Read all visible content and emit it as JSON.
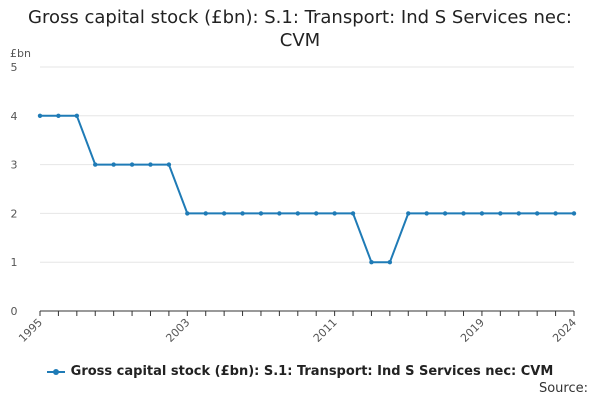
{
  "chart_data": {
    "type": "line",
    "title_lines": [
      "Gross capital stock (£bn): S.1: Transport: Ind S Services nec:",
      "CVM"
    ],
    "ylabel": "£bn",
    "ylim": [
      0,
      5
    ],
    "yticks": [
      0,
      1,
      2,
      3,
      4,
      5
    ],
    "xlim": [
      1995,
      2024
    ],
    "xtick_labels": [
      "1995",
      "2003",
      "2011",
      "2019",
      "2024"
    ],
    "grid": true,
    "legend": "bottom",
    "series": [
      {
        "name": "Gross capital stock (£bn): S.1: Transport: Ind S Services nec: CVM",
        "color": "#1f7bb6",
        "x": [
          1995,
          1996,
          1997,
          1998,
          1999,
          2000,
          2001,
          2002,
          2003,
          2004,
          2005,
          2006,
          2007,
          2008,
          2009,
          2010,
          2011,
          2012,
          2013,
          2014,
          2015,
          2016,
          2017,
          2018,
          2019,
          2020,
          2021,
          2022,
          2023,
          2024
        ],
        "values": [
          4,
          4,
          4,
          3,
          3,
          3,
          3,
          3,
          2,
          2,
          2,
          2,
          2,
          2,
          2,
          2,
          2,
          2,
          1,
          1,
          2,
          2,
          2,
          2,
          2,
          2,
          2,
          2,
          2,
          2
        ]
      }
    ]
  },
  "source_label": "Source:"
}
